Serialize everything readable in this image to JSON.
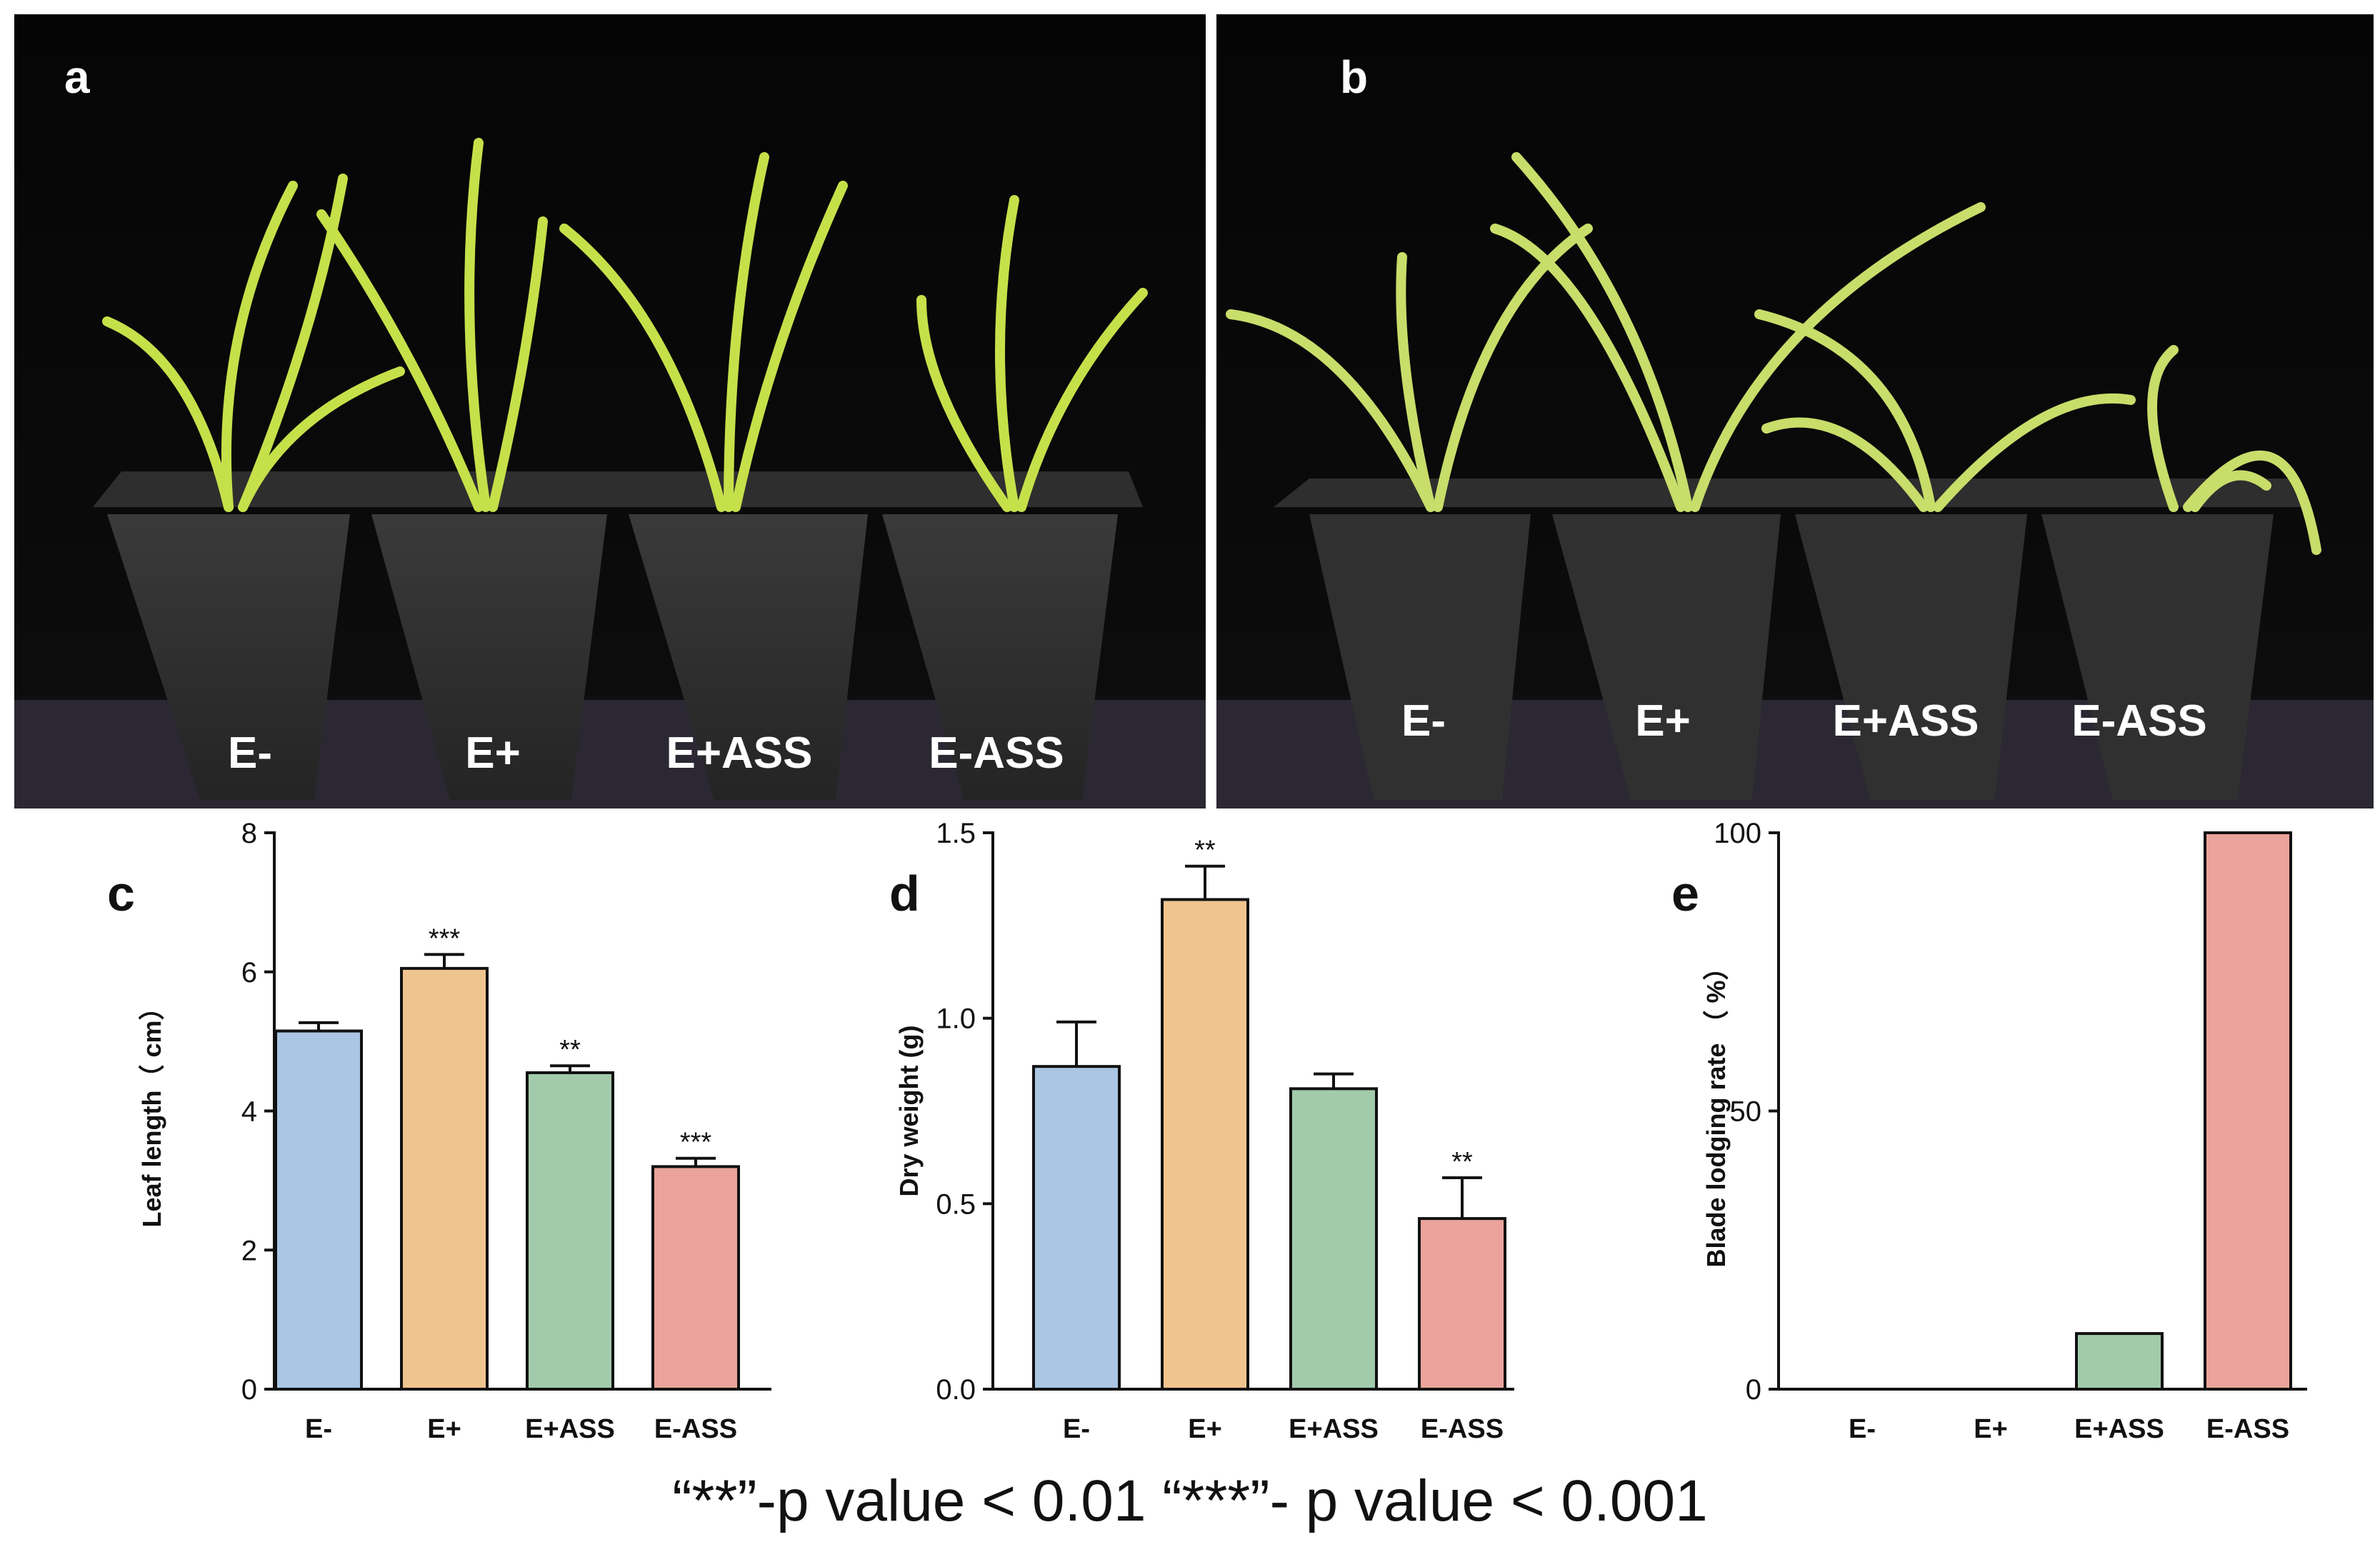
{
  "photos": {
    "panel_a": {
      "letter": "a",
      "labels": [
        "E-",
        "E+",
        "E+ASS",
        "E-ASS"
      ]
    },
    "panel_b": {
      "letter": "b",
      "labels": [
        "E-",
        "E+",
        "E+ASS",
        "E-ASS"
      ]
    }
  },
  "colors": {
    "E-": "#aac6e3",
    "E+": "#f0c48e",
    "E+ASS": "#a2cbab",
    "E-ASS": "#eba39b"
  },
  "chart_data": [
    {
      "panel": "c",
      "type": "bar",
      "ylabel": "Leaf length（ cm）",
      "categories": [
        "E-",
        "E+",
        "E+ASS",
        "E-ASS"
      ],
      "values": [
        5.15,
        6.05,
        4.55,
        3.2
      ],
      "errors": [
        0.12,
        0.2,
        0.1,
        0.12
      ],
      "significance": [
        "",
        "***",
        "**",
        "***"
      ],
      "ylim": [
        0,
        8
      ],
      "yticks": [
        0,
        2,
        4,
        6,
        8
      ],
      "ytick_labels": [
        "0",
        "2",
        "4",
        "6",
        "8"
      ]
    },
    {
      "panel": "d",
      "type": "bar",
      "ylabel": "Dry weight (g)",
      "categories": [
        "E-",
        "E+",
        "E+ASS",
        "E-ASS"
      ],
      "values": [
        0.87,
        1.32,
        0.81,
        0.46
      ],
      "errors": [
        0.12,
        0.09,
        0.04,
        0.11
      ],
      "significance": [
        "",
        "**",
        "",
        "**"
      ],
      "ylim": [
        0,
        1.5
      ],
      "yticks": [
        0,
        0.5,
        1.0,
        1.5
      ],
      "ytick_labels": [
        "0.0",
        "0.5",
        "1.0",
        "1.5"
      ]
    },
    {
      "panel": "e",
      "type": "bar",
      "ylabel": "Blade lodging rate （ %）",
      "categories": [
        "E-",
        "E+",
        "E+ASS",
        "E-ASS"
      ],
      "values": [
        0,
        0,
        10,
        100
      ],
      "errors": [
        0,
        0,
        0,
        0
      ],
      "significance": [
        "",
        "",
        "",
        ""
      ],
      "ylim": [
        0,
        100
      ],
      "yticks": [
        0,
        50,
        100
      ],
      "ytick_labels": [
        "0",
        "50",
        "100"
      ]
    }
  ],
  "footnote": "“**”-p value < 0.01  “***”- p value < 0.001"
}
